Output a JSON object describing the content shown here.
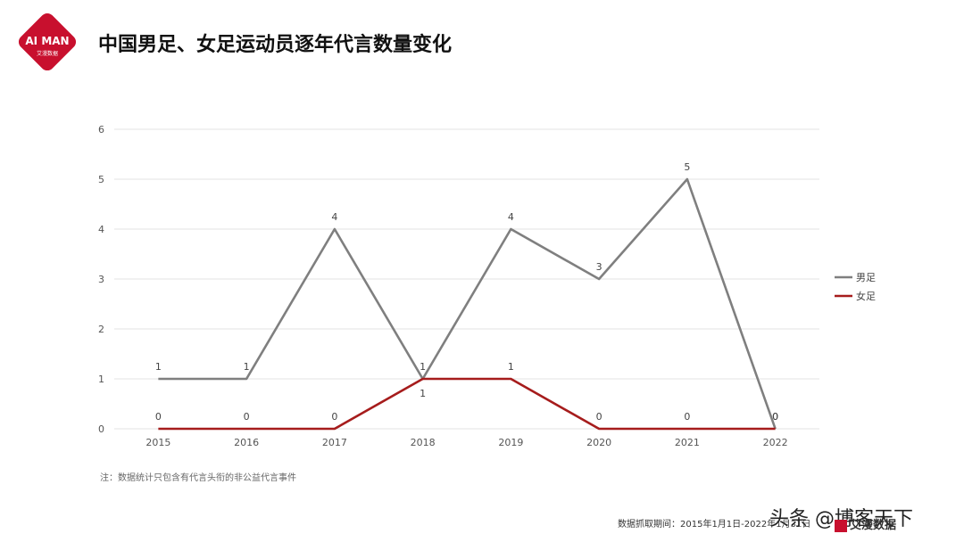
{
  "header": {
    "logo_text": "AI MAN",
    "logo_sub": "艾漫数据",
    "title": "中国男足、女足运动员逐年代言数量变化"
  },
  "colors": {
    "brand_red": "#c8102e",
    "men_line": "#7f7f7f",
    "women_line": "#a61c1c",
    "grid": "#e3e3e3"
  },
  "chart_data": {
    "type": "line",
    "categories": [
      "2015",
      "2016",
      "2017",
      "2018",
      "2019",
      "2020",
      "2021",
      "2022"
    ],
    "series": [
      {
        "name": "男足",
        "values": [
          1,
          1,
          4,
          1,
          4,
          3,
          5,
          0
        ],
        "color": "#7f7f7f"
      },
      {
        "name": "女足",
        "values": [
          0,
          0,
          0,
          1,
          1,
          0,
          0,
          0
        ],
        "color": "#a61c1c"
      }
    ],
    "yticks": [
      "0",
      "1",
      "2",
      "3",
      "4",
      "5",
      "6"
    ],
    "ylim": [
      0,
      6
    ],
    "grid": true,
    "legend_position": "right",
    "title": "",
    "xlabel": "",
    "ylabel": ""
  },
  "footer": {
    "note": "注：数据统计只包含有代言头衔的非公益代言事件",
    "source": "数据抓取期间：2015年1月1日-2022年1月31日",
    "watermark": "头条 @博客天下",
    "brand": "艾漫数据"
  }
}
